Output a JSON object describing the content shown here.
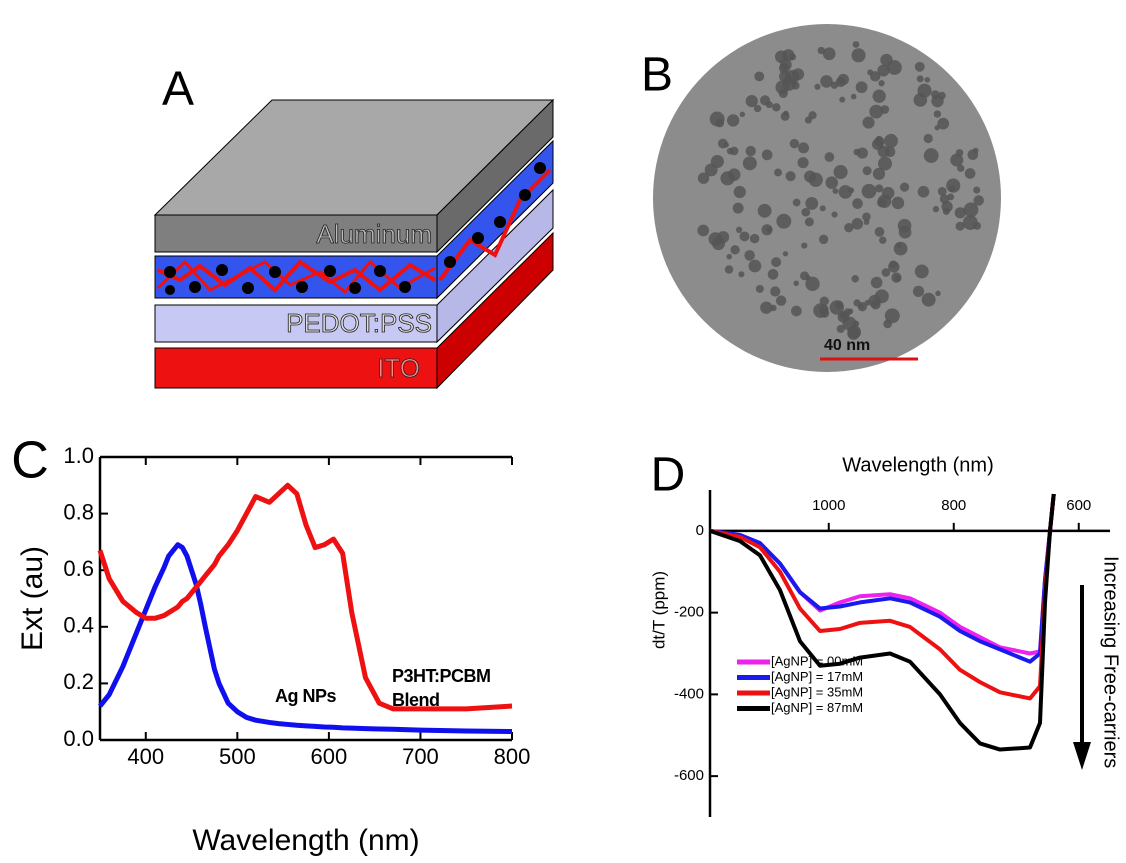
{
  "panels": {
    "A": "A",
    "B": "B",
    "C": "C",
    "D": "D"
  },
  "schematic": {
    "layers": [
      "Aluminum",
      "PEDOT:PSS",
      "ITO"
    ]
  },
  "micrograph": {
    "scale_bar": "40 nm"
  },
  "chart_data": [
    {
      "type": "line",
      "xlabel": "Wavelength (nm)",
      "ylabel": "Ext (au)",
      "xlim": [
        350,
        800
      ],
      "xticks": [
        400,
        500,
        600,
        700,
        800
      ],
      "ylim": [
        0,
        1.0
      ],
      "yticks": [
        {
          "value": 0,
          "label": "0.0"
        },
        0.2,
        0.4,
        0.6,
        0.8,
        {
          "value": 1.0,
          "label": "1.0"
        }
      ],
      "x": [
        350,
        360,
        375,
        390,
        400,
        410,
        420,
        425,
        435,
        440,
        445,
        455,
        460,
        465,
        475,
        480,
        490,
        500,
        510,
        520,
        535,
        545,
        555,
        565,
        575,
        585,
        595,
        605,
        615,
        625,
        640,
        655,
        670,
        700,
        750,
        800
      ],
      "series": [
        {
          "name": "Ag NPs",
          "color": "#1010ee",
          "values": [
            0.12,
            0.16,
            0.26,
            0.38,
            0.46,
            0.54,
            0.61,
            0.65,
            0.69,
            0.68,
            0.65,
            0.55,
            0.48,
            0.4,
            0.25,
            0.2,
            0.13,
            0.1,
            0.08,
            0.07,
            0.062,
            0.058,
            0.055,
            0.052,
            0.05,
            0.048,
            0.046,
            0.045,
            0.043,
            0.042,
            0.04,
            0.039,
            0.038,
            0.035,
            0.032,
            0.03
          ]
        },
        {
          "name": "P3HT:PCBM Blend",
          "color": "#ee1111",
          "values": [
            0.67,
            0.57,
            0.49,
            0.45,
            0.43,
            0.43,
            0.44,
            0.45,
            0.47,
            0.49,
            0.5,
            0.54,
            0.56,
            0.58,
            0.62,
            0.65,
            0.69,
            0.74,
            0.8,
            0.86,
            0.84,
            0.87,
            0.9,
            0.87,
            0.76,
            0.68,
            0.69,
            0.71,
            0.66,
            0.45,
            0.22,
            0.13,
            0.11,
            0.11,
            0.11,
            0.12
          ]
        }
      ]
    },
    {
      "type": "line",
      "xlabel": "Wavelength (nm)",
      "ylabel": "dt/T (ppm)",
      "annotation": "Increasing Free-carriers",
      "xlim": [
        1190,
        550
      ],
      "xticks": [
        1000,
        800,
        600
      ],
      "ylim": [
        -700,
        100
      ],
      "yticks": [
        -600,
        -400,
        -200,
        0
      ],
      "x": [
        1190,
        1142,
        1110,
        1078,
        1046,
        1014,
        982,
        950,
        902,
        870,
        822,
        790,
        758,
        726,
        678,
        662,
        654,
        646,
        640
      ],
      "series": [
        {
          "name": "[AgNP] = 00mM",
          "color": "#ee22ee",
          "values": [
            0,
            -10,
            -30,
            -80,
            -150,
            -195,
            -175,
            -160,
            -155,
            -165,
            -200,
            -235,
            -260,
            -285,
            -300,
            -295,
            -120,
            0,
            90
          ]
        },
        {
          "name": "[AgNP] = 17mM",
          "color": "#1a1aee",
          "values": [
            0,
            -10,
            -30,
            -80,
            -150,
            -190,
            -185,
            -175,
            -165,
            -175,
            -210,
            -245,
            -270,
            -290,
            -320,
            -300,
            -120,
            0,
            90
          ]
        },
        {
          "name": "[AgNP] = 35mM",
          "color": "#ee1111",
          "values": [
            0,
            -15,
            -40,
            -100,
            -190,
            -245,
            -240,
            -225,
            -220,
            -235,
            -290,
            -340,
            -370,
            -395,
            -410,
            -380,
            -150,
            0,
            90
          ]
        },
        {
          "name": "[AgNP] = 87mM",
          "color": "#000000",
          "values": [
            0,
            -25,
            -60,
            -145,
            -270,
            -330,
            -325,
            -310,
            -300,
            -320,
            -400,
            -470,
            -520,
            -535,
            -530,
            -470,
            -175,
            0,
            90
          ]
        }
      ]
    }
  ]
}
